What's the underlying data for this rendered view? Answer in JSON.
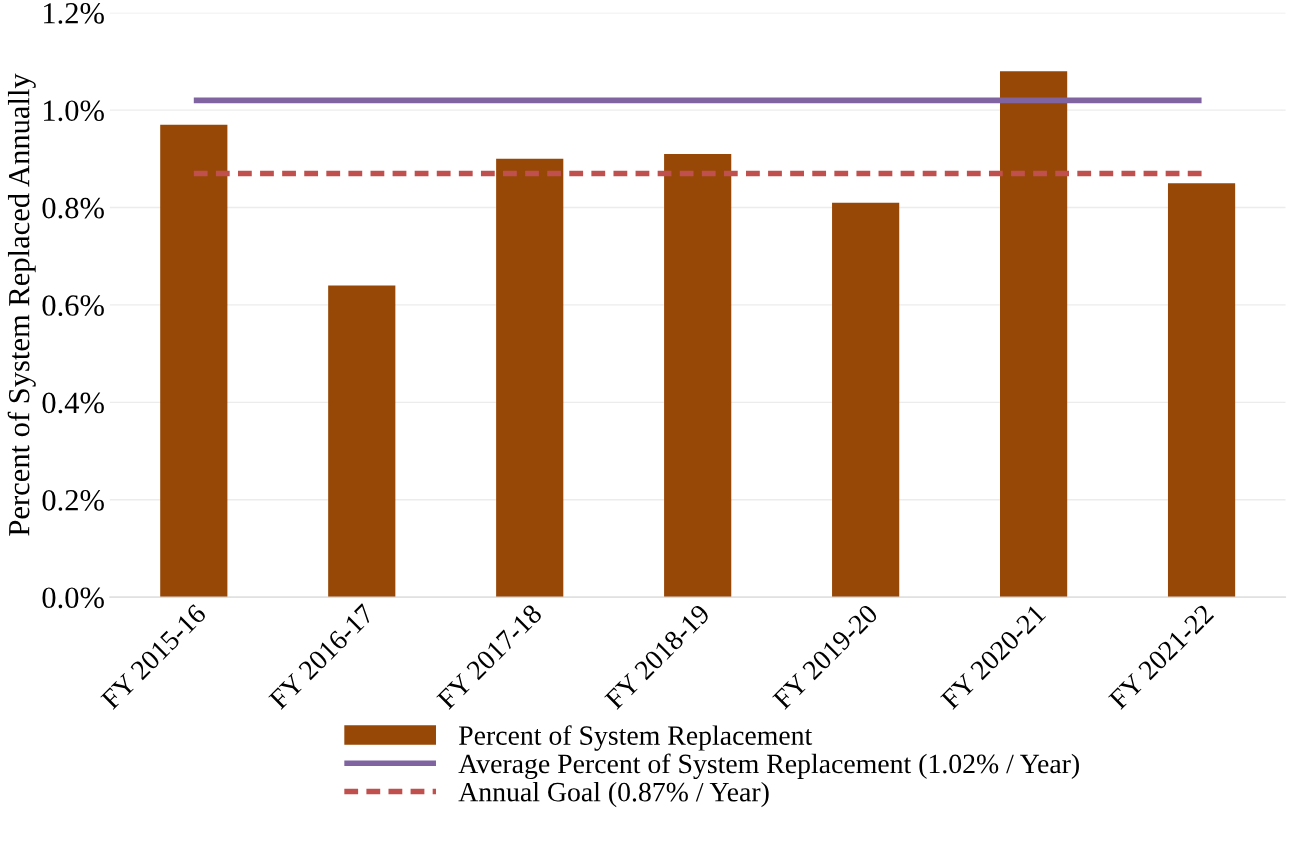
{
  "chart_data": {
    "type": "bar",
    "ylabel": "Percent of System Replaced Annually",
    "categories": [
      "FY 2015-16",
      "FY 2016-17",
      "FY 2017-18",
      "FY 2018-19",
      "FY 2019-20",
      "FY 2020-21",
      "FY 2021-22"
    ],
    "series": [
      {
        "name": "Percent of System Replacement",
        "color": "#974706",
        "values": [
          0.97,
          0.64,
          0.9,
          0.91,
          0.81,
          1.08,
          0.85
        ]
      },
      {
        "name": "Average Percent of System Replacement (1.02% / Year)",
        "color": "#8064a2",
        "type": "line",
        "line_style": "solid",
        "values": [
          1.02,
          1.02,
          1.02,
          1.02,
          1.02,
          1.02,
          1.02
        ]
      },
      {
        "name": "Annual Goal (0.87% / Year)",
        "color": "#c0504d",
        "type": "line",
        "line_style": "dashed",
        "values": [
          0.87,
          0.87,
          0.87,
          0.87,
          0.87,
          0.87,
          0.87
        ]
      }
    ],
    "ylim": [
      0,
      1.2
    ],
    "yticks": [
      {
        "value": 0,
        "label": "0.0%"
      },
      {
        "value": 0.2,
        "label": "0.2%"
      },
      {
        "value": 0.4,
        "label": "0.4%"
      },
      {
        "value": 0.6,
        "label": "0.6%"
      },
      {
        "value": 0.8,
        "label": "0.8%"
      },
      {
        "value": 1.0,
        "label": "1.0%"
      },
      {
        "value": 1.2,
        "label": "1.2%"
      }
    ],
    "grid": "y",
    "legend": "bottom"
  }
}
